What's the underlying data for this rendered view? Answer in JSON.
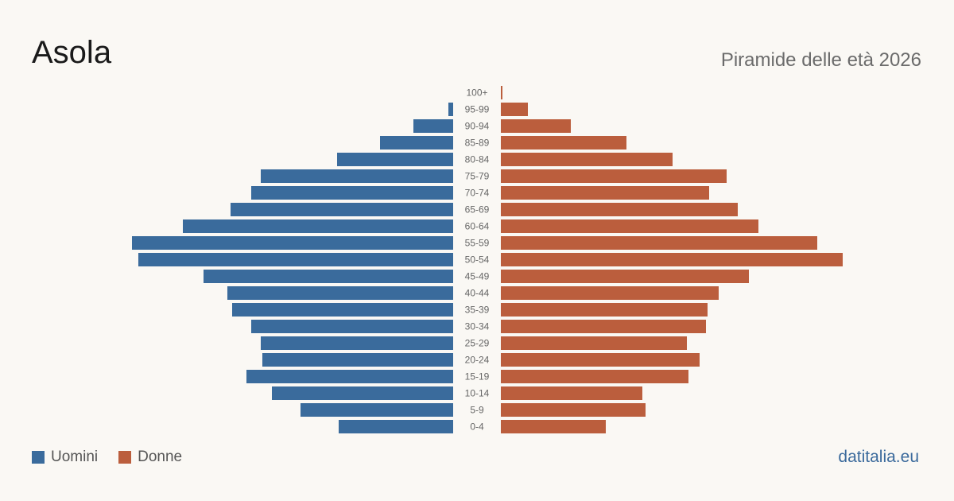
{
  "header": {
    "title": "Asola",
    "subtitle": "Piramide delle età 2026"
  },
  "footer": {
    "brand": "datitalia.eu"
  },
  "colors": {
    "male": "#3a6b9c",
    "female": "#bb5e3d"
  },
  "chart_data": {
    "type": "bar",
    "orientation": "horizontal-pyramid",
    "categories": [
      "100+",
      "95-99",
      "90-94",
      "85-89",
      "80-84",
      "75-79",
      "70-74",
      "65-69",
      "60-64",
      "55-59",
      "50-54",
      "45-49",
      "40-44",
      "35-39",
      "30-34",
      "25-29",
      "20-24",
      "15-19",
      "10-14",
      "5-9",
      "0-4"
    ],
    "series": [
      {
        "name": "Uomini",
        "values": [
          0,
          3,
          25,
          46,
          73,
          121,
          127,
          140,
          170,
          202,
          198,
          157,
          142,
          139,
          127,
          121,
          120,
          130,
          114,
          96,
          72
        ]
      },
      {
        "name": "Donne",
        "values": [
          1,
          17,
          44,
          79,
          108,
          142,
          131,
          149,
          162,
          199,
          215,
          156,
          137,
          130,
          129,
          117,
          125,
          118,
          89,
          91,
          66
        ]
      }
    ],
    "legend_position": "bottom-left",
    "grid": false
  }
}
